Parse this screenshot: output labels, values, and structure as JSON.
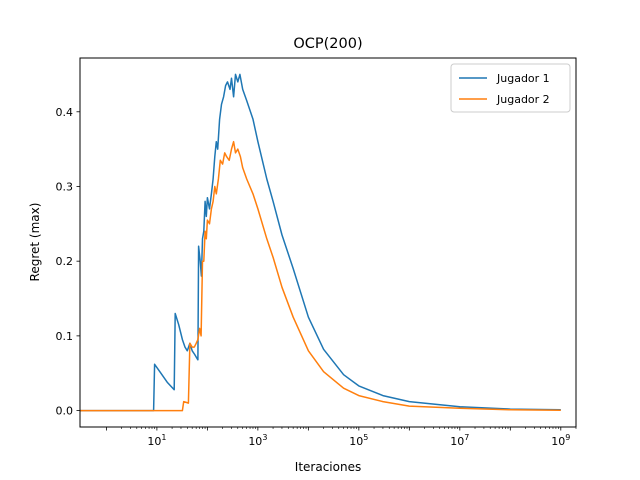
{
  "chart_data": {
    "type": "line",
    "title": "OCP(200)",
    "xlabel": "Iteraciones",
    "ylabel": "Regret (max)",
    "xscale": "log",
    "xlim": [
      0.3,
      2000000000
    ],
    "ylim": [
      -0.022,
      0.472
    ],
    "xticks": [
      {
        "value": 10,
        "base": "10",
        "exp": "1"
      },
      {
        "value": 1000,
        "base": "10",
        "exp": "3"
      },
      {
        "value": 100000,
        "base": "10",
        "exp": "5"
      },
      {
        "value": 10000000,
        "base": "10",
        "exp": "7"
      },
      {
        "value": 1000000000,
        "base": "10",
        "exp": "9"
      }
    ],
    "yticks": [
      {
        "value": 0.0,
        "label": "0.0"
      },
      {
        "value": 0.1,
        "label": "0.1"
      },
      {
        "value": 0.2,
        "label": "0.2"
      },
      {
        "value": 0.3,
        "label": "0.3"
      },
      {
        "value": 0.4,
        "label": "0.4"
      }
    ],
    "grid": false,
    "legend_position": "top-right",
    "series": [
      {
        "name": "Jugador 1",
        "color": "#1f77b4",
        "points": [
          [
            0.3,
            0
          ],
          [
            8.6,
            0
          ],
          [
            9,
            0.062
          ],
          [
            12,
            0.05
          ],
          [
            16,
            0.038
          ],
          [
            22,
            0.028
          ],
          [
            23,
            0.13
          ],
          [
            27,
            0.115
          ],
          [
            32,
            0.095
          ],
          [
            36,
            0.085
          ],
          [
            40,
            0.08
          ],
          [
            45,
            0.09
          ],
          [
            50,
            0.08
          ],
          [
            56,
            0.075
          ],
          [
            62,
            0.07
          ],
          [
            65,
            0.068
          ],
          [
            67,
            0.22
          ],
          [
            72,
            0.2
          ],
          [
            76,
            0.18
          ],
          [
            80,
            0.23
          ],
          [
            85,
            0.24
          ],
          [
            90,
            0.28
          ],
          [
            95,
            0.26
          ],
          [
            100,
            0.285
          ],
          [
            110,
            0.27
          ],
          [
            120,
            0.29
          ],
          [
            130,
            0.31
          ],
          [
            140,
            0.34
          ],
          [
            150,
            0.36
          ],
          [
            160,
            0.35
          ],
          [
            175,
            0.39
          ],
          [
            190,
            0.41
          ],
          [
            210,
            0.42
          ],
          [
            230,
            0.435
          ],
          [
            250,
            0.44
          ],
          [
            280,
            0.43
          ],
          [
            300,
            0.445
          ],
          [
            330,
            0.42
          ],
          [
            360,
            0.45
          ],
          [
            400,
            0.44
          ],
          [
            440,
            0.45
          ],
          [
            500,
            0.43
          ],
          [
            600,
            0.415
          ],
          [
            800,
            0.39
          ],
          [
            1000,
            0.36
          ],
          [
            1500,
            0.31
          ],
          [
            2000,
            0.28
          ],
          [
            3000,
            0.235
          ],
          [
            5000,
            0.19
          ],
          [
            10000,
            0.125
          ],
          [
            20000,
            0.082
          ],
          [
            50000,
            0.048
          ],
          [
            100000,
            0.033
          ],
          [
            300000,
            0.02
          ],
          [
            1000000,
            0.012
          ],
          [
            10000000,
            0.005
          ],
          [
            100000000,
            0.002
          ],
          [
            1000000000,
            0.001
          ]
        ]
      },
      {
        "name": "Jugador 2",
        "color": "#ff7f0e",
        "points": [
          [
            0.3,
            0
          ],
          [
            28,
            0
          ],
          [
            32,
            0
          ],
          [
            34,
            0.012
          ],
          [
            38,
            0.011
          ],
          [
            42,
            0.01
          ],
          [
            45,
            0.09
          ],
          [
            50,
            0.085
          ],
          [
            55,
            0.085
          ],
          [
            60,
            0.09
          ],
          [
            65,
            0.095
          ],
          [
            70,
            0.11
          ],
          [
            75,
            0.1
          ],
          [
            80,
            0.2
          ],
          [
            85,
            0.2
          ],
          [
            90,
            0.24
          ],
          [
            95,
            0.23
          ],
          [
            100,
            0.255
          ],
          [
            110,
            0.25
          ],
          [
            120,
            0.27
          ],
          [
            130,
            0.28
          ],
          [
            140,
            0.3
          ],
          [
            150,
            0.29
          ],
          [
            165,
            0.31
          ],
          [
            180,
            0.335
          ],
          [
            200,
            0.33
          ],
          [
            220,
            0.345
          ],
          [
            240,
            0.34
          ],
          [
            270,
            0.335
          ],
          [
            300,
            0.35
          ],
          [
            330,
            0.36
          ],
          [
            360,
            0.345
          ],
          [
            400,
            0.35
          ],
          [
            450,
            0.34
          ],
          [
            500,
            0.325
          ],
          [
            600,
            0.31
          ],
          [
            800,
            0.29
          ],
          [
            1000,
            0.27
          ],
          [
            1500,
            0.23
          ],
          [
            2000,
            0.205
          ],
          [
            3000,
            0.165
          ],
          [
            5000,
            0.125
          ],
          [
            10000,
            0.08
          ],
          [
            20000,
            0.052
          ],
          [
            50000,
            0.03
          ],
          [
            100000,
            0.02
          ],
          [
            300000,
            0.012
          ],
          [
            1000000,
            0.006
          ],
          [
            10000000,
            0.003
          ],
          [
            100000000,
            0.001
          ],
          [
            1000000000,
            0.0005
          ]
        ]
      }
    ]
  }
}
